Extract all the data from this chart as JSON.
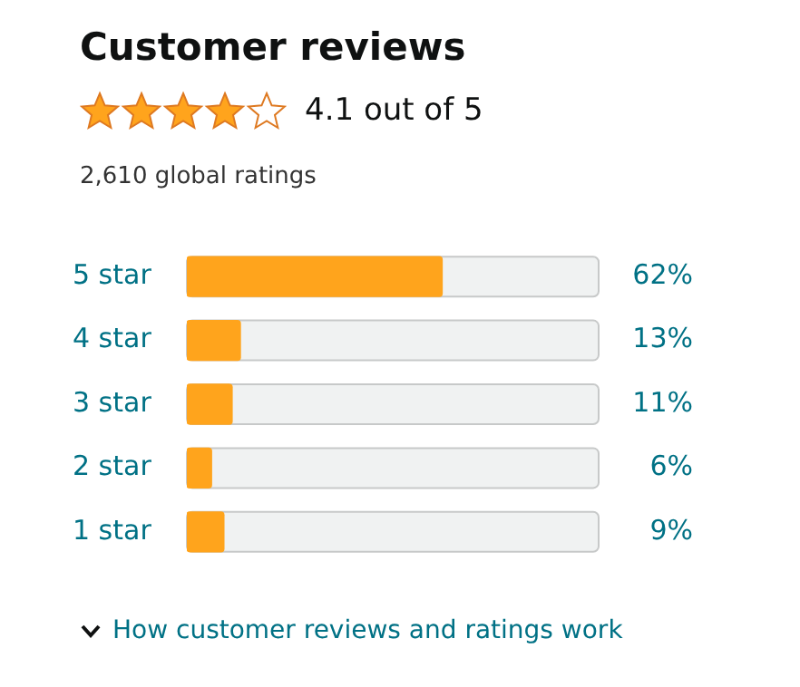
{
  "chart_data": {
    "type": "bar",
    "orientation": "horizontal",
    "title": "Customer reviews",
    "subtitle": "4.1 out of 5",
    "annotations": [
      "2,610 global ratings",
      "How customer reviews and ratings work"
    ],
    "categories": [
      "5 star",
      "4 star",
      "3 star",
      "2 star",
      "1 star"
    ],
    "values": [
      62,
      13,
      11,
      6,
      9
    ],
    "value_labels": [
      "62%",
      "13%",
      "11%",
      "6%",
      "9%"
    ],
    "color": "#ffa41c",
    "xlim": [
      0,
      100
    ],
    "tick_labels": "y",
    "grid": false,
    "legend": false
  }
}
